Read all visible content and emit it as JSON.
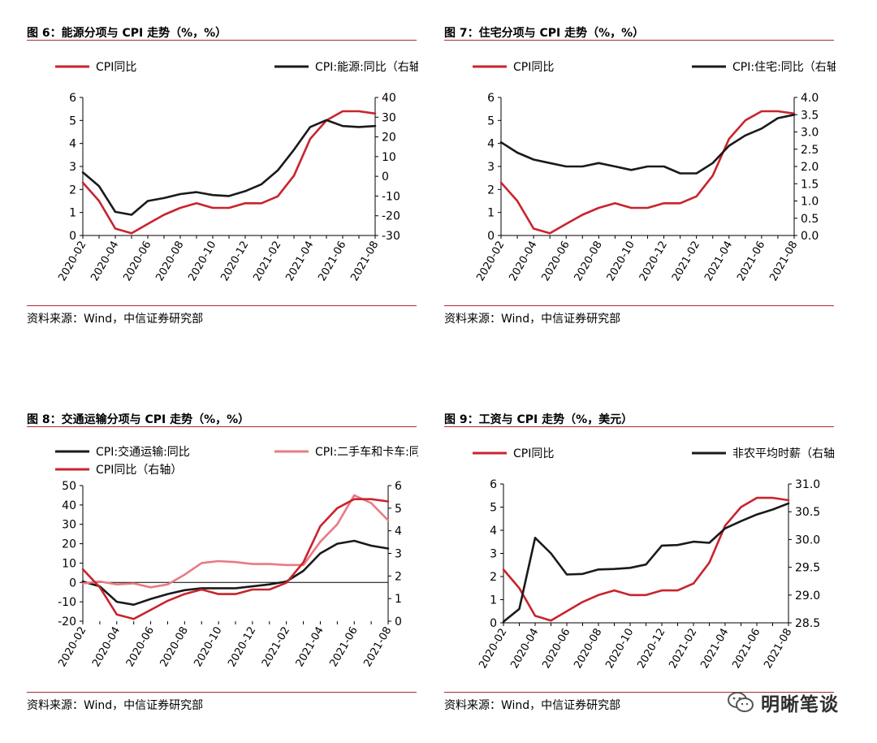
{
  "colors": {
    "red": "#c8242d",
    "black": "#1a1a1a",
    "pink": "#ea7a85",
    "rule": "#b0282e"
  },
  "watermark": {
    "text": "明晰笔谈",
    "icon": "wechat-icon"
  },
  "charts": [
    {
      "title": "图 6：能源分项与 CPI 走势（%，%）",
      "source": "资料来源：Wind，中信证券研究部",
      "chart_data": {
        "type": "line",
        "x_categories": [
          "2020-02",
          "2020-03",
          "2020-04",
          "2020-05",
          "2020-06",
          "2020-07",
          "2020-08",
          "2020-09",
          "2020-10",
          "2020-11",
          "2020-12",
          "2021-01",
          "2021-02",
          "2021-03",
          "2021-04",
          "2021-05",
          "2021-06",
          "2021-07",
          "2021-08"
        ],
        "x_tick_labels": [
          "2020-02",
          "2020-04",
          "2020-06",
          "2020-08",
          "2020-10",
          "2020-12",
          "2021-02",
          "2021-04",
          "2021-06",
          "2021-08"
        ],
        "legend_rows": [
          [
            "CPI同比",
            "CPI:能源:同比（右轴）"
          ]
        ],
        "y_left": {
          "min": 0,
          "max": 6,
          "ticks": [
            "0",
            "1",
            "2",
            "3",
            "4",
            "5",
            "6"
          ]
        },
        "y_right": {
          "min": -30,
          "max": 40,
          "ticks": [
            "-30",
            "-20",
            "-10",
            "0",
            "10",
            "20",
            "30",
            "40"
          ]
        },
        "series": [
          {
            "name": "CPI同比",
            "axis": "left",
            "color": "red",
            "values": [
              2.3,
              1.5,
              0.3,
              0.1,
              0.5,
              0.9,
              1.2,
              1.4,
              1.2,
              1.2,
              1.4,
              1.4,
              1.7,
              2.6,
              4.2,
              5.0,
              5.4,
              5.4,
              5.3
            ]
          },
          {
            "name": "CPI:能源:同比（右轴）",
            "axis": "right",
            "color": "black",
            "values": [
              2.0,
              -5.0,
              -18.0,
              -19.5,
              -12.5,
              -11.0,
              -9.0,
              -8.0,
              -9.5,
              -10.0,
              -7.5,
              -4.0,
              3.0,
              13.5,
              25.0,
              28.5,
              25.5,
              25.0,
              25.5
            ]
          }
        ]
      }
    },
    {
      "title": "图 7：住宅分项与 CPI 走势（%，%）",
      "source": "资料来源：Wind，中信证券研究部",
      "chart_data": {
        "type": "line",
        "x_categories": [
          "2020-02",
          "2020-03",
          "2020-04",
          "2020-05",
          "2020-06",
          "2020-07",
          "2020-08",
          "2020-09",
          "2020-10",
          "2020-11",
          "2020-12",
          "2021-01",
          "2021-02",
          "2021-03",
          "2021-04",
          "2021-05",
          "2021-06",
          "2021-07",
          "2021-08"
        ],
        "x_tick_labels": [
          "2020-02",
          "2020-04",
          "2020-06",
          "2020-08",
          "2020-10",
          "2020-12",
          "2021-02",
          "2021-04",
          "2021-06",
          "2021-08"
        ],
        "legend_rows": [
          [
            "CPI同比",
            "CPI:住宅:同比（右轴）"
          ]
        ],
        "y_left": {
          "min": 0,
          "max": 6,
          "ticks": [
            "0",
            "1",
            "2",
            "3",
            "4",
            "5",
            "6"
          ]
        },
        "y_right": {
          "min": 0,
          "max": 4,
          "ticks": [
            "0.0",
            "0.5",
            "1.0",
            "1.5",
            "2.0",
            "2.5",
            "3.0",
            "3.5",
            "4.0"
          ]
        },
        "series": [
          {
            "name": "CPI同比",
            "axis": "left",
            "color": "red",
            "values": [
              2.3,
              1.5,
              0.3,
              0.1,
              0.5,
              0.9,
              1.2,
              1.4,
              1.2,
              1.2,
              1.4,
              1.4,
              1.7,
              2.6,
              4.2,
              5.0,
              5.4,
              5.4,
              5.3
            ]
          },
          {
            "name": "CPI:住宅:同比（右轴）",
            "axis": "right",
            "color": "black",
            "values": [
              2.7,
              2.4,
              2.2,
              2.1,
              2.0,
              2.0,
              2.1,
              2.0,
              1.9,
              2.0,
              2.0,
              1.8,
              1.8,
              2.1,
              2.6,
              2.9,
              3.1,
              3.4,
              3.5
            ]
          }
        ]
      }
    },
    {
      "title": "图 8：交通运输分项与 CPI 走势（%，%）",
      "source": "资料来源：Wind，中信证券研究部",
      "chart_data": {
        "type": "line",
        "x_categories": [
          "2020-02",
          "2020-03",
          "2020-04",
          "2020-05",
          "2020-06",
          "2020-07",
          "2020-08",
          "2020-09",
          "2020-10",
          "2020-11",
          "2020-12",
          "2021-01",
          "2021-02",
          "2021-03",
          "2021-04",
          "2021-05",
          "2021-06",
          "2021-07",
          "2021-08"
        ],
        "x_tick_labels": [
          "2020-02",
          "2020-04",
          "2020-06",
          "2020-08",
          "2020-10",
          "2020-12",
          "2021-02",
          "2021-04",
          "2021-06",
          "2021-08"
        ],
        "legend_rows": [
          [
            "CPI:交通运输:同比",
            "CPI:二手车和卡车:同比"
          ],
          [
            "CPI同比（右轴）"
          ]
        ],
        "y_left": {
          "min": -20,
          "max": 50,
          "ticks": [
            "-20",
            "-10",
            "0",
            "10",
            "20",
            "30",
            "40",
            "50"
          ]
        },
        "y_right": {
          "min": 0,
          "max": 6,
          "ticks": [
            "0",
            "1",
            "2",
            "3",
            "4",
            "5",
            "6"
          ]
        },
        "series": [
          {
            "name": "CPI:交通运输:同比",
            "axis": "left",
            "color": "black",
            "values": [
              0.5,
              -2.0,
              -10.0,
              -11.5,
              -8.5,
              -6.0,
              -4.0,
              -3.0,
              -3.0,
              -3.0,
              -2.0,
              -1.0,
              0.5,
              6.0,
              15.0,
              20.0,
              21.5,
              19.0,
              17.5
            ]
          },
          {
            "name": "CPI:二手车和卡车:同比",
            "axis": "left",
            "color": "pink",
            "values": [
              -0.5,
              0.5,
              -1.0,
              -0.5,
              -2.5,
              -1.0,
              4.0,
              10.0,
              11.0,
              10.5,
              9.5,
              9.5,
              9.0,
              9.0,
              21.0,
              30.0,
              45.0,
              41.0,
              32.0
            ]
          },
          {
            "name": "CPI同比（右轴）",
            "axis": "right",
            "color": "red",
            "values": [
              2.3,
              1.5,
              0.3,
              0.1,
              0.5,
              0.9,
              1.2,
              1.4,
              1.2,
              1.2,
              1.4,
              1.4,
              1.7,
              2.6,
              4.2,
              5.0,
              5.4,
              5.4,
              5.3
            ]
          }
        ]
      }
    },
    {
      "title": "图 9：工资与 CPI 走势（%，美元）",
      "source": "资料来源：Wind，中信证券研究部",
      "chart_data": {
        "type": "line",
        "x_categories": [
          "2020-02",
          "2020-03",
          "2020-04",
          "2020-05",
          "2020-06",
          "2020-07",
          "2020-08",
          "2020-09",
          "2020-10",
          "2020-11",
          "2020-12",
          "2021-01",
          "2021-02",
          "2021-03",
          "2021-04",
          "2021-05",
          "2021-06",
          "2021-07",
          "2021-08"
        ],
        "x_tick_labels": [
          "2020-02",
          "2020-04",
          "2020-06",
          "2020-08",
          "2020-10",
          "2020-12",
          "2021-02",
          "2021-04",
          "2021-06",
          "2021-08"
        ],
        "legend_rows": [
          [
            "CPI同比",
            "非农平均时薪（右轴）"
          ]
        ],
        "y_left": {
          "min": 0,
          "max": 6,
          "ticks": [
            "0",
            "1",
            "2",
            "3",
            "4",
            "5",
            "6"
          ]
        },
        "y_right": {
          "min": 28.5,
          "max": 31.0,
          "ticks": [
            "28.5",
            "29.0",
            "29.5",
            "30.0",
            "30.5",
            "31.0"
          ]
        },
        "series": [
          {
            "name": "CPI同比",
            "axis": "left",
            "color": "red",
            "values": [
              2.3,
              1.5,
              0.3,
              0.1,
              0.5,
              0.9,
              1.2,
              1.4,
              1.2,
              1.2,
              1.4,
              1.4,
              1.7,
              2.6,
              4.2,
              5.0,
              5.4,
              5.4,
              5.3
            ]
          },
          {
            "name": "非农平均时薪（右轴）",
            "axis": "right",
            "color": "black",
            "values": [
              28.52,
              28.75,
              30.03,
              29.75,
              29.37,
              29.38,
              29.46,
              29.47,
              29.49,
              29.55,
              29.89,
              29.9,
              29.96,
              29.94,
              30.2,
              30.33,
              30.45,
              30.54,
              30.65
            ]
          }
        ]
      }
    }
  ]
}
